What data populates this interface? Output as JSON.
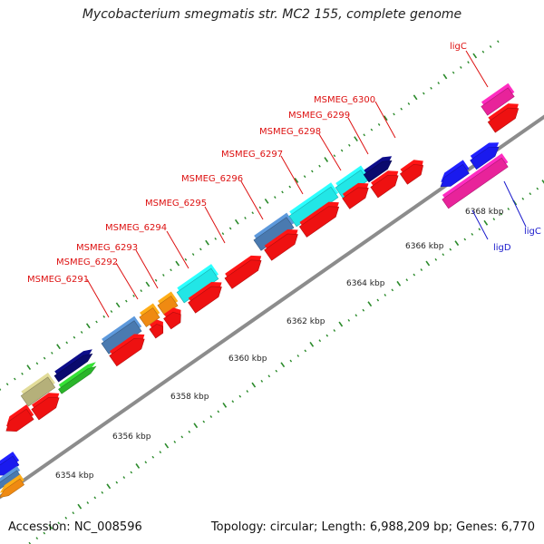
{
  "header": {
    "title": "Mycobacterium smegmatis str. MC2 155, complete genome"
  },
  "footer": {
    "accession": "Accession: NC_008596",
    "summary": "Topology: circular; Length: 6,988,209 bp; Genes: 6,770"
  },
  "scale_labels": [
    "6354 kbp",
    "6356 kbp",
    "6358 kbp",
    "6360 kbp",
    "6362 kbp",
    "6364 kbp",
    "6366 kbp",
    "6368 kbp"
  ],
  "gene_labels_red": [
    "MSMEG_6291",
    "MSMEG_6292",
    "MSMEG_6293",
    "MSMEG_6294",
    "MSMEG_6295",
    "MSMEG_6296",
    "MSMEG_6297",
    "MSMEG_6298",
    "MSMEG_6299",
    "MSMEG_6300",
    "ligC"
  ],
  "gene_labels_blue": [
    "ligD",
    "ligC"
  ],
  "colors": {
    "backbone": "#8c8c8c",
    "red": "#ee1111",
    "blue": "#1a1aee",
    "magenta": "#e8239a",
    "steelblue": "#4a7ab0",
    "cyan": "#22e6e6",
    "orange": "#ef8a12",
    "olive": "#b5b07a",
    "navy": "#0a0a6e",
    "green": "#2ab52a",
    "tick": "#2a8a2a",
    "label_red": "#dd1111",
    "label_blue": "#1a1acc"
  }
}
